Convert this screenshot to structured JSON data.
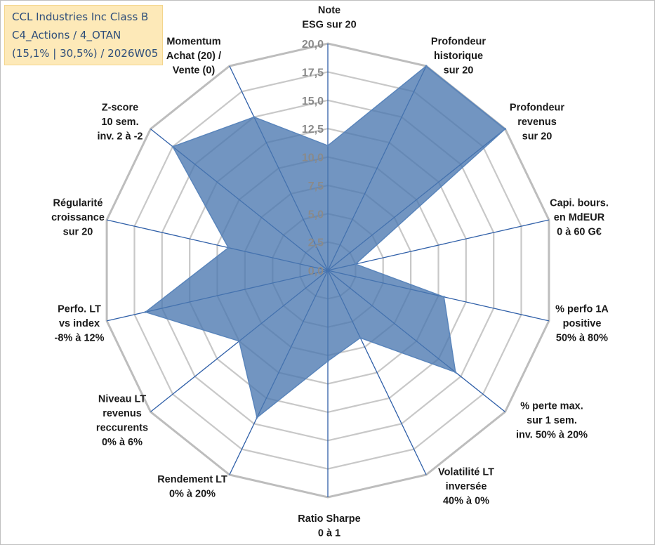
{
  "title_box": {
    "line1": "CCL Industries Inc Class B",
    "line2": "C4_Actions / 4_OTAN",
    "line3": "(15,1% | 30,5%) / 2026W05"
  },
  "chart_data": {
    "type": "radar",
    "r_min": 0,
    "r_max": 20,
    "r_step": 2.5,
    "tick_labels": [
      "0,0",
      "2,5",
      "5,0",
      "7,5",
      "10,0",
      "12,5",
      "15,0",
      "17,5",
      "20,0"
    ],
    "axes": [
      {
        "label": [
          "Note",
          "ESG sur 20"
        ],
        "value": 11.0
      },
      {
        "label": [
          "Profondeur",
          "historique",
          "sur 20"
        ],
        "value": 20.0
      },
      {
        "label": [
          "Profondeur",
          "revenus",
          "sur 20"
        ],
        "value": 20.0
      },
      {
        "label": [
          "Capi. bours.",
          "en MdEUR",
          "0 à 60 G€"
        ],
        "value": 2.5
      },
      {
        "label": [
          "% perfo 1A",
          "positive",
          "50% à 80%"
        ],
        "value": 10.5
      },
      {
        "label": [
          "% perte max.",
          "sur 1 sem.",
          "inv. 50% à 20%"
        ],
        "value": 14.4
      },
      {
        "label": [
          "Volatilité LT",
          "inversée",
          "40% à 0%"
        ],
        "value": 6.6
      },
      {
        "label": [
          "Ratio Sharpe",
          "0 à 1"
        ],
        "value": 8.0
      },
      {
        "label": [
          "Rendement LT",
          "0% à 20%"
        ],
        "value": 14.4
      },
      {
        "label": [
          "Niveau LT",
          "revenus",
          "reccurents",
          "0% à 6%"
        ],
        "value": 10.0
      },
      {
        "label": [
          "Perfo. LT",
          "vs index",
          "-8% à 12%"
        ],
        "value": 16.5
      },
      {
        "label": [
          "Régularité",
          "croissance",
          "sur 20"
        ],
        "value": 9.0
      },
      {
        "label": [
          "Z-score",
          "10 sem.",
          "inv. 2 à -2"
        ],
        "value": 17.5
      },
      {
        "label": [
          "Momentum",
          "Achat (20) /",
          "Vente (0)"
        ],
        "value": 15.0
      }
    ],
    "colors": {
      "fill": "#4a77b0",
      "fill_opacity": "0.78",
      "outline": "#5a85bb",
      "spoke": "#2f5fa8",
      "grid": "#c8c8c8",
      "outer_grid": "#bdbdbd"
    }
  }
}
